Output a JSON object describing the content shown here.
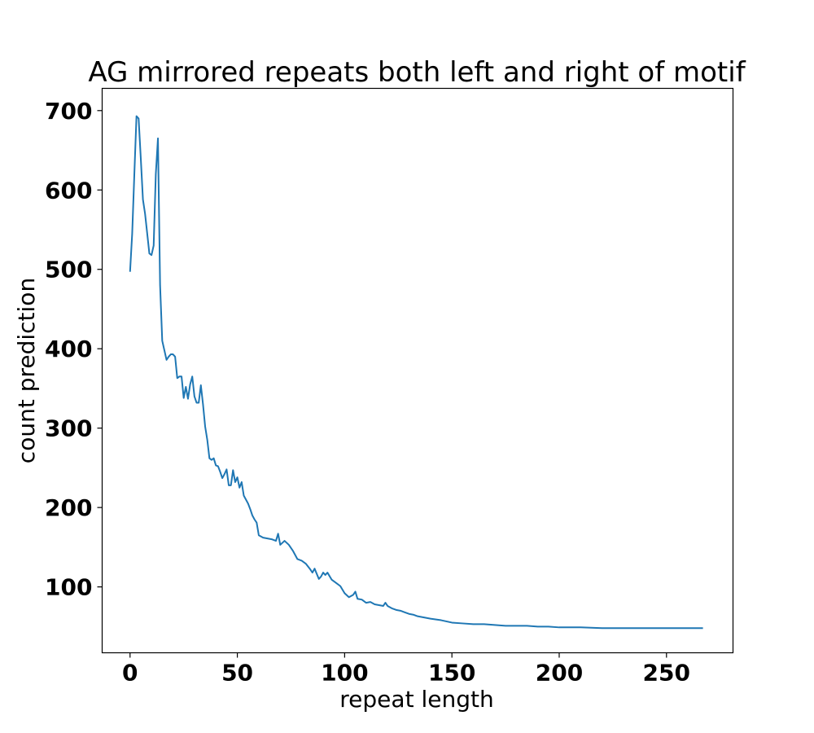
{
  "chart_data": {
    "type": "line",
    "title": "AG mirrored repeats both left and right of motif",
    "xlabel": "repeat length",
    "ylabel": "count prediction",
    "xlim": [
      -13,
      281
    ],
    "ylim": [
      17,
      728
    ],
    "xticks": [
      0,
      50,
      100,
      150,
      200,
      250
    ],
    "yticks": [
      100,
      200,
      300,
      400,
      500,
      600,
      700
    ],
    "grid": false,
    "series": [
      {
        "color": "#1f77b4",
        "x": [
          0,
          1,
          2,
          3,
          4,
          5,
          6,
          7,
          8,
          9,
          10,
          11,
          12,
          13,
          14,
          15,
          16,
          17,
          18,
          19,
          20,
          21,
          22,
          23,
          24,
          25,
          26,
          27,
          28,
          29,
          30,
          31,
          32,
          33,
          34,
          35,
          36,
          37,
          38,
          39,
          40,
          41,
          42,
          43,
          44,
          45,
          46,
          47,
          48,
          49,
          50,
          51,
          52,
          53,
          54,
          55,
          56,
          57,
          58,
          59,
          60,
          62,
          64,
          66,
          68,
          69,
          70,
          72,
          74,
          76,
          78,
          80,
          82,
          84,
          85,
          86,
          88,
          89,
          90,
          91,
          92,
          94,
          96,
          98,
          100,
          102,
          104,
          105,
          106,
          108,
          110,
          112,
          114,
          116,
          118,
          119,
          120,
          122,
          124,
          126,
          128,
          130,
          132,
          134,
          136,
          138,
          140,
          145,
          150,
          155,
          160,
          165,
          170,
          175,
          180,
          185,
          190,
          195,
          200,
          210,
          220,
          230,
          240,
          250,
          260,
          267
        ],
        "y": [
          497,
          545,
          620,
          693,
          690,
          640,
          588,
          570,
          545,
          520,
          518,
          530,
          620,
          665,
          480,
          410,
          398,
          386,
          390,
          393,
          393,
          390,
          363,
          365,
          365,
          338,
          352,
          337,
          355,
          365,
          340,
          332,
          332,
          354,
          330,
          302,
          285,
          262,
          260,
          262,
          253,
          252,
          245,
          237,
          242,
          248,
          228,
          228,
          247,
          232,
          238,
          225,
          232,
          215,
          210,
          205,
          198,
          190,
          185,
          181,
          165,
          162,
          161,
          160,
          158,
          167,
          153,
          158,
          153,
          145,
          135,
          133,
          129,
          122,
          118,
          123,
          110,
          113,
          118,
          115,
          118,
          109,
          105,
          101,
          92,
          87,
          90,
          94,
          85,
          84,
          80,
          81,
          78,
          77,
          76,
          80,
          76,
          73,
          71,
          70,
          68,
          66,
          65,
          63,
          62,
          61,
          60,
          58,
          55,
          54,
          53,
          53,
          52,
          51,
          51,
          51,
          50,
          50,
          49,
          49,
          48,
          48,
          48,
          48,
          48,
          48
        ]
      }
    ]
  }
}
